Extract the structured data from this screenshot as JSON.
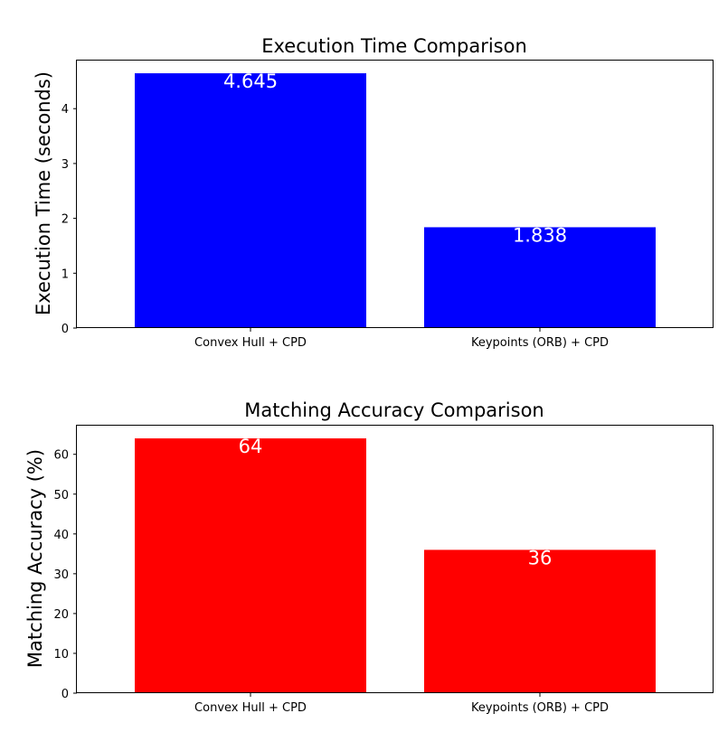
{
  "chart_data": [
    {
      "type": "bar",
      "title": "Execution Time Comparison",
      "xlabel": "",
      "ylabel": "Execution Time (seconds)",
      "categories": [
        "Convex Hull + CPD",
        "Keypoints (ORB) + CPD"
      ],
      "values": [
        4.645,
        1.838
      ],
      "data_labels": [
        "4.645",
        "1.838"
      ],
      "ylim": [
        0,
        4.877
      ],
      "yticks": [
        0,
        1,
        2,
        3,
        4
      ],
      "grid": false,
      "legend": "none",
      "bar_color": "#0000ff",
      "data_label_color": "#ffffff"
    },
    {
      "type": "bar",
      "title": "Matching Accuracy Comparison",
      "xlabel": "",
      "ylabel": "Matching Accuracy (%)",
      "categories": [
        "Convex Hull + CPD",
        "Keypoints (ORB) + CPD"
      ],
      "values": [
        64,
        36
      ],
      "data_labels": [
        "64",
        "36"
      ],
      "ylim": [
        0,
        67.2
      ],
      "yticks": [
        0,
        10,
        20,
        30,
        40,
        50,
        60
      ],
      "grid": false,
      "legend": "none",
      "bar_color": "#ff0000",
      "data_label_color": "#ffffff"
    }
  ]
}
